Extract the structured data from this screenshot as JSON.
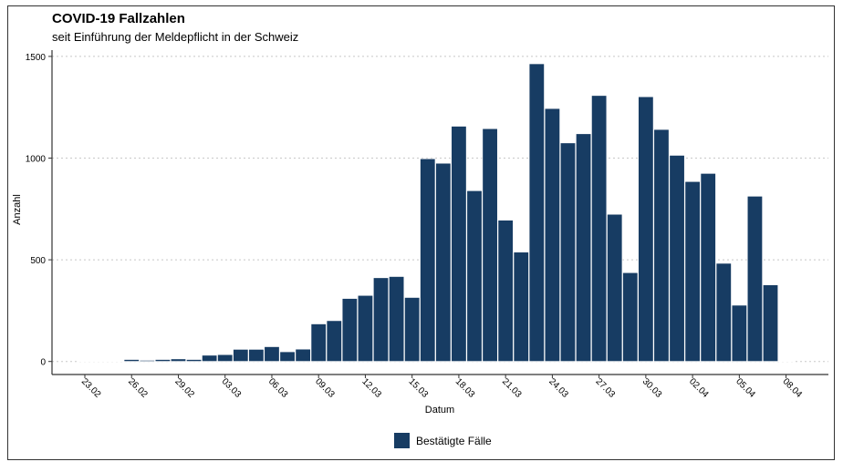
{
  "chart_data": {
    "type": "bar",
    "title": "COVID-19 Fallzahlen",
    "subtitle": "seit Einführung der Meldepflicht in der Schweiz",
    "xlabel": "Datum",
    "ylabel": "Anzahl",
    "ylim": [
      0,
      1550
    ],
    "yticks": [
      0,
      500,
      1000,
      1500
    ],
    "grid": "horizontal dotted",
    "legend_position": "bottom",
    "color": "#173c63",
    "series": [
      {
        "name": "Bestätigte Fälle",
        "values": [
          0,
          1,
          1,
          10,
          6,
          10,
          13,
          10,
          31,
          34,
          60,
          60,
          73,
          48,
          61,
          185,
          201,
          310,
          325,
          412,
          418,
          315,
          997,
          975,
          1157,
          840,
          1145,
          695,
          538,
          1464,
          1244,
          1075,
          1120,
          1308,
          724,
          437,
          1302,
          1141,
          1014,
          885,
          925,
          483,
          277,
          813,
          377,
          2
        ]
      }
    ],
    "categories": [
      "23.02",
      "24.02",
      "25.02",
      "26.02",
      "27.02",
      "28.02",
      "29.02",
      "01.03",
      "02.03",
      "03.03",
      "04.03",
      "05.03",
      "06.03",
      "07.03",
      "08.03",
      "09.03",
      "10.03",
      "11.03",
      "12.03",
      "13.03",
      "14.03",
      "15.03",
      "16.03",
      "17.03",
      "18.03",
      "19.03",
      "20.03",
      "21.03",
      "22.03",
      "23.03",
      "24.03",
      "25.03",
      "26.03",
      "27.03",
      "28.03",
      "29.03",
      "30.03",
      "31.03",
      "01.04",
      "02.04",
      "03.04",
      "04.04",
      "05.04",
      "06.04",
      "07.04",
      "08.04"
    ],
    "xtick_labels": [
      "23.02",
      "26.02",
      "29.02",
      "03.03",
      "06.03",
      "09.03",
      "12.03",
      "15.03",
      "18.03",
      "21.03",
      "24.03",
      "27.03",
      "30.03",
      "02.04",
      "05.04",
      "08.04"
    ]
  }
}
